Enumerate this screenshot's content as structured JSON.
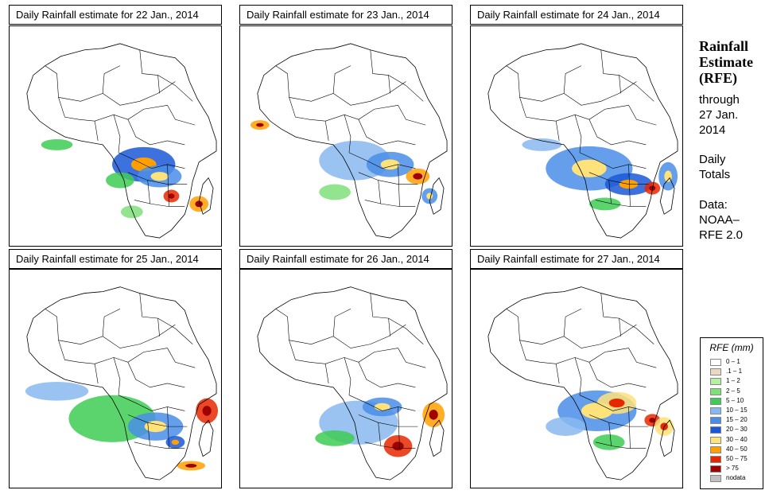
{
  "panels": [
    {
      "title": "Daily Rainfall estimate for  22 Jan., 2014"
    },
    {
      "title": "Daily Rainfall estimate for  23 Jan., 2014"
    },
    {
      "title": "Daily Rainfall estimate for  24 Jan., 2014"
    },
    {
      "title": "Daily Rainfall estimate for  25 Jan., 2014"
    },
    {
      "title": "Daily Rainfall estimate for  26 Jan., 2014"
    },
    {
      "title": "Daily Rainfall estimate for  27 Jan., 2014"
    }
  ],
  "sidebar": {
    "title_line1": "Rainfall",
    "title_line2": "Estimate",
    "title_line3": "(RFE)",
    "through_line1": "through",
    "through_line2": "27 Jan.",
    "through_line3": "2014",
    "daily_line1": "Daily",
    "daily_line2": "Totals",
    "data_line1": "Data:",
    "data_line2": "NOAA–",
    "data_line3": "RFE 2.0"
  },
  "legend": {
    "title": "RFE (mm)",
    "items": [
      {
        "label": "0 – 1",
        "color": "#ffffff"
      },
      {
        "label": ".1 – 1",
        "color": "#e8d8c4"
      },
      {
        "label": "1 – 2",
        "color": "#b5f0a0"
      },
      {
        "label": "2 – 5",
        "color": "#7fe07a"
      },
      {
        "label": "5 – 10",
        "color": "#3fcc55"
      },
      {
        "label": "10 – 15",
        "color": "#88b8f0"
      },
      {
        "label": "15 – 20",
        "color": "#4a8ee8"
      },
      {
        "label": "20 – 30",
        "color": "#1a58d8"
      },
      {
        "label": "30 – 40",
        "color": "#ffe27a"
      },
      {
        "label": "40 – 50",
        "color": "#ffa000"
      },
      {
        "label": "50 – 75",
        "color": "#e62800"
      },
      {
        "label": "> 75",
        "color": "#a00000"
      },
      {
        "label": "nodata",
        "color": "#c0c0c0"
      }
    ]
  }
}
